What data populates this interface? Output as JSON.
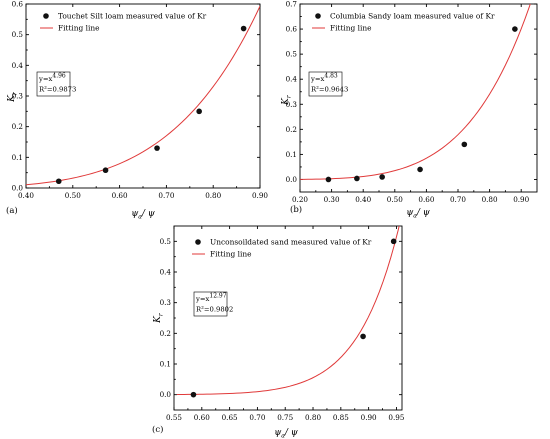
{
  "chart_data": [
    {
      "id": "a",
      "type": "scatter",
      "panel_label": "(a)",
      "xlabel": "ψa/ψ",
      "ylabel": "Kr",
      "xlim": [
        0.4,
        0.9
      ],
      "ylim": [
        0.0,
        0.6
      ],
      "xticks": [
        0.4,
        0.5,
        0.6,
        0.7,
        0.8,
        0.9
      ],
      "yticks": [
        0.0,
        0.1,
        0.2,
        0.3,
        0.4,
        0.5,
        0.6
      ],
      "exponent": 4.96,
      "legend": {
        "position": "top-left",
        "points_label": "Touchet Silt loam measured value of Kr",
        "line_label": "Fitting line"
      },
      "equation": {
        "main": "y=x",
        "exp": "4.96",
        "r2": "R²=0.9873"
      },
      "series": [
        {
          "name": "Touchet Silt loam measured value of Kr",
          "kind": "points",
          "x": [
            0.47,
            0.57,
            0.68,
            0.77,
            0.865
          ],
          "y": [
            0.022,
            0.058,
            0.13,
            0.25,
            0.52
          ]
        },
        {
          "name": "Fitting line",
          "kind": "line",
          "x": [
            0.4,
            0.9
          ],
          "formula": "y=x^4.96"
        }
      ],
      "grid": false
    },
    {
      "id": "b",
      "type": "scatter",
      "panel_label": "(b)",
      "xlabel": "ψa/ψ",
      "ylabel": "Kr",
      "xlim": [
        0.2,
        0.95
      ],
      "ylim": [
        -0.05,
        0.7
      ],
      "xticks": [
        0.2,
        0.3,
        0.4,
        0.5,
        0.6,
        0.7,
        0.8,
        0.9
      ],
      "yticks": [
        0.0,
        0.1,
        0.2,
        0.3,
        0.4,
        0.5,
        0.6,
        0.7
      ],
      "exponent": 4.83,
      "legend": {
        "position": "top-left",
        "points_label": "Columbia Sandy loam measured value of Kr",
        "line_label": "Fitting line"
      },
      "equation": {
        "main": "y=x",
        "exp": "4.83",
        "r2": "R²=0.9643"
      },
      "series": [
        {
          "name": "Columbia Sandy loam measured value of Kr",
          "kind": "points",
          "x": [
            0.29,
            0.38,
            0.46,
            0.58,
            0.72,
            0.88
          ],
          "y": [
            0.0,
            0.004,
            0.01,
            0.04,
            0.14,
            0.6
          ]
        },
        {
          "name": "Fitting line",
          "kind": "line",
          "x": [
            0.2,
            0.95
          ],
          "formula": "y=x^4.83"
        }
      ],
      "grid": false
    },
    {
      "id": "c",
      "type": "scatter",
      "panel_label": "(c)",
      "xlabel": "ψa/ψ",
      "ylabel": "Kr",
      "xlim": [
        0.55,
        0.96
      ],
      "ylim": [
        -0.05,
        0.55
      ],
      "xticks": [
        0.55,
        0.6,
        0.65,
        0.7,
        0.75,
        0.8,
        0.85,
        0.9,
        0.95
      ],
      "yticks": [
        0.0,
        0.1,
        0.2,
        0.3,
        0.4,
        0.5
      ],
      "exponent": 12.97,
      "legend": {
        "position": "top-left",
        "points_label": "Unconsoildated sand measured value of Kr",
        "line_label": "Fitting line"
      },
      "equation": {
        "main": "y=x",
        "exp": "12.97",
        "r2": "R²=0.9802"
      },
      "series": [
        {
          "name": "Unconsoildated sand measured value of Kr",
          "kind": "points",
          "x": [
            0.585,
            0.89,
            0.945
          ],
          "y": [
            0.0,
            0.19,
            0.5
          ]
        },
        {
          "name": "Fitting line",
          "kind": "line",
          "x": [
            0.555,
            0.96
          ],
          "formula": "y=x^12.97"
        }
      ],
      "grid": false
    }
  ],
  "colors": {
    "fit_line": "#e03a3a",
    "points": "#111111",
    "axis": "#000000"
  }
}
